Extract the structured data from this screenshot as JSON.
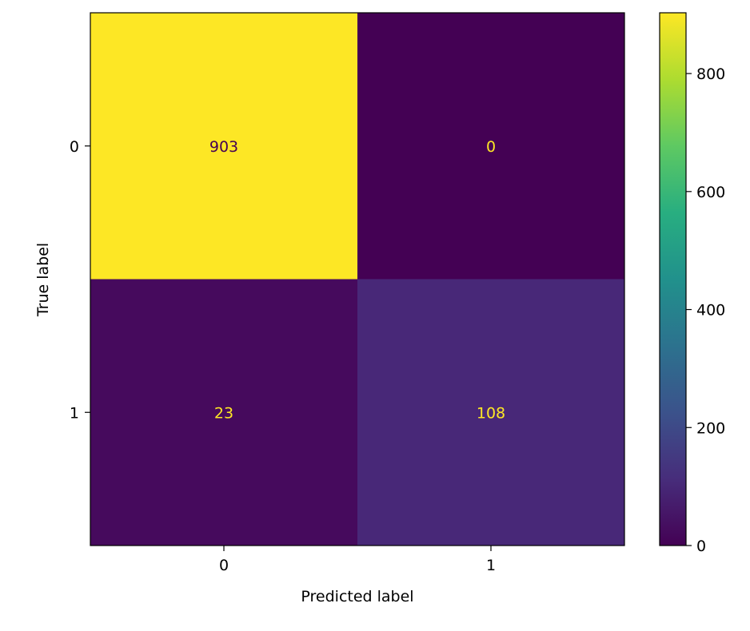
{
  "chart_data": {
    "type": "heatmap",
    "title": "",
    "xlabel": "Predicted label",
    "ylabel": "True label",
    "x_categories": [
      "0",
      "1"
    ],
    "y_categories": [
      "0",
      "1"
    ],
    "matrix": [
      [
        903,
        0
      ],
      [
        23,
        108
      ]
    ],
    "colormap": "viridis",
    "colorbar": {
      "range": [
        0,
        903
      ],
      "ticks": [
        "0",
        "200",
        "400",
        "600",
        "800"
      ],
      "tick_values": [
        0,
        200,
        400,
        600,
        800
      ]
    },
    "cell_colors": {
      "903": "#fde725",
      "0": "#440154",
      "23": "#460a5d",
      "108": "#482878"
    },
    "annotation_color_on_dark": "#fde725",
    "annotation_color_on_light": "#440154"
  }
}
